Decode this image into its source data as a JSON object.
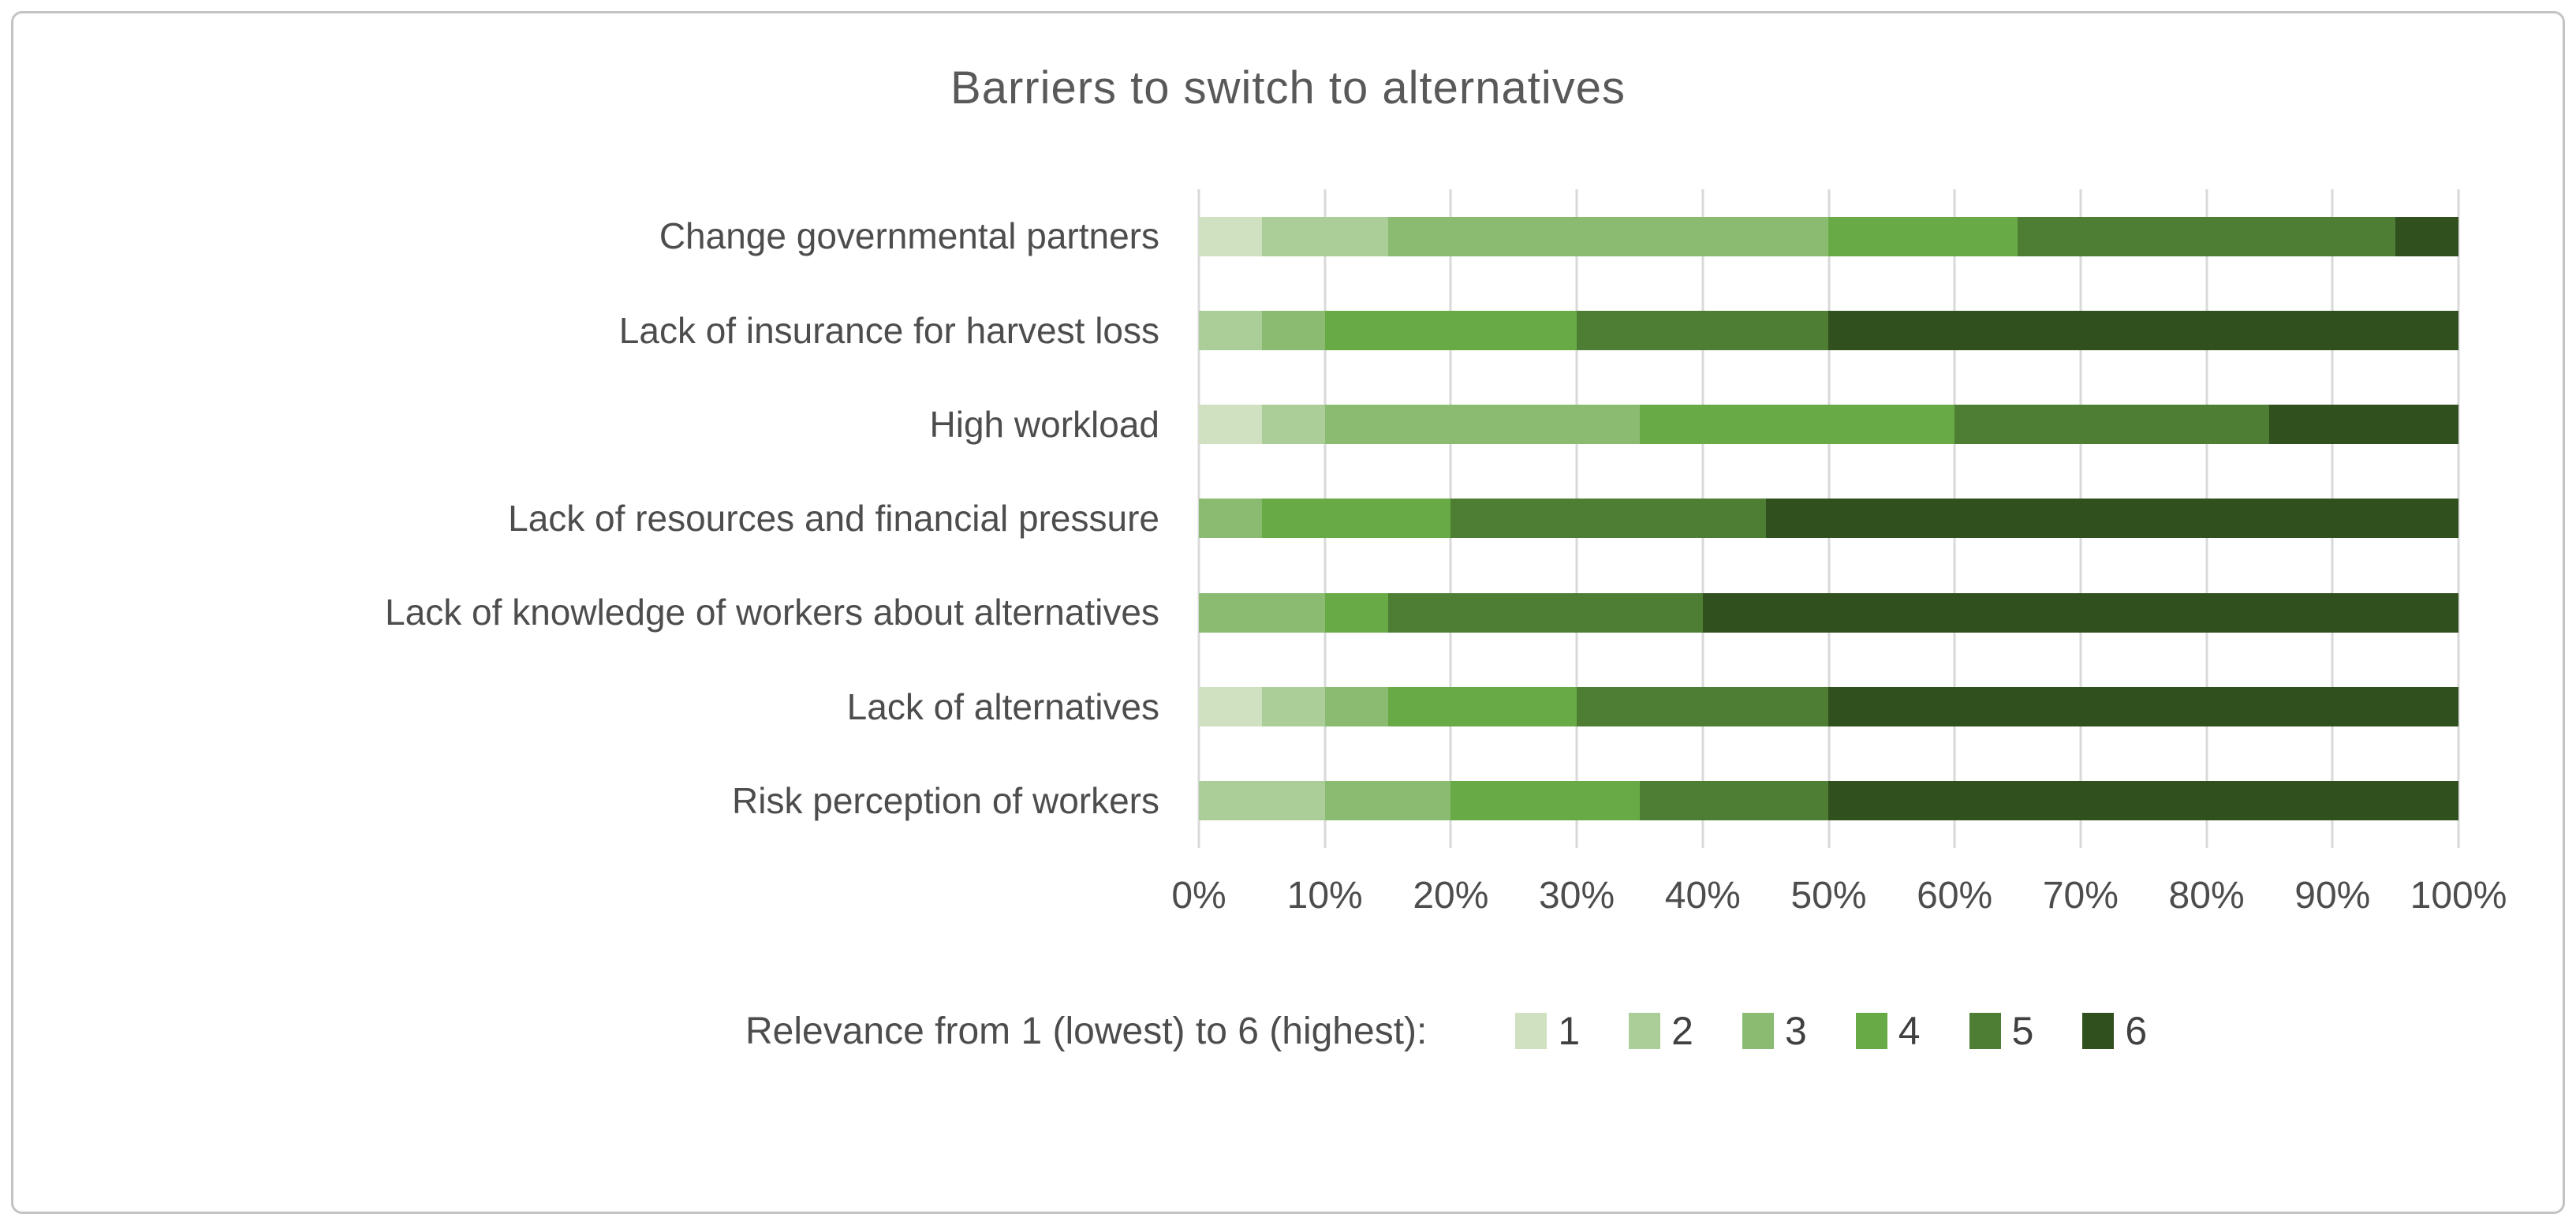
{
  "title": "Barriers to switch to alternatives",
  "legend": {
    "label": "Relevance from 1 (lowest) to 6 (highest):",
    "items": [
      {
        "label": "1",
        "color": "#cfe1c1"
      },
      {
        "label": "2",
        "color": "#abce99"
      },
      {
        "label": "3",
        "color": "#8abb71"
      },
      {
        "label": "4",
        "color": "#68ab46"
      },
      {
        "label": "5",
        "color": "#4e7e33"
      },
      {
        "label": "6",
        "color": "#30501d"
      }
    ]
  },
  "chart_data": {
    "type": "bar",
    "orientation": "horizontal",
    "stacked": true,
    "units": "percent",
    "title": "Barriers to switch to alternatives",
    "grid": true,
    "legend_position": "bottom",
    "xlim": [
      0,
      100
    ],
    "x_ticks": [
      "0%",
      "10%",
      "20%",
      "30%",
      "40%",
      "50%",
      "60%",
      "70%",
      "80%",
      "90%",
      "100%"
    ],
    "categories": [
      "Change governmental partners",
      "Lack of insurance for harvest loss",
      "High workload",
      "Lack of resources and financial pressure",
      "Lack of knowledge of workers about alternatives",
      "Lack of alternatives",
      "Risk perception of workers"
    ],
    "series": [
      {
        "name": "1",
        "color": "#cfe1c1",
        "values": [
          5,
          0,
          5,
          0,
          0,
          5,
          0
        ]
      },
      {
        "name": "2",
        "color": "#abce99",
        "values": [
          10,
          5,
          5,
          0,
          0,
          5,
          10
        ]
      },
      {
        "name": "3",
        "color": "#8abb71",
        "values": [
          35,
          5,
          25,
          5,
          10,
          5,
          10
        ]
      },
      {
        "name": "4",
        "color": "#68ab46",
        "values": [
          15,
          20,
          25,
          15,
          5,
          15,
          15
        ]
      },
      {
        "name": "5",
        "color": "#4e7e33",
        "values": [
          30,
          20,
          25,
          25,
          25,
          20,
          15
        ]
      },
      {
        "name": "6",
        "color": "#30501d",
        "values": [
          5,
          50,
          15,
          55,
          60,
          50,
          50
        ]
      }
    ]
  }
}
